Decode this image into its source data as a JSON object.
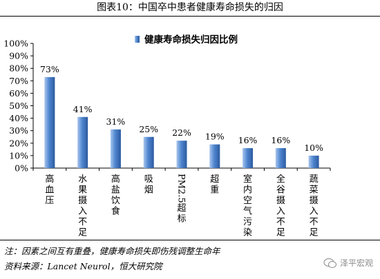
{
  "title": "图表10：中国卒中患者健康寿命损失的归因",
  "note": "注：因素之间互有重叠，健康寿命损失即伤残调整生命年",
  "source": "资料来源：Lancet Neurol，恒大研究院",
  "watermark": "泽平宏观",
  "colors": {
    "bar_light": "#a9c6ee",
    "bar_mid": "#4f86cf",
    "bar_dark": "#2c5aa0"
  },
  "chart_data": {
    "type": "bar",
    "title": "",
    "xlabel": "",
    "ylabel": "",
    "ylim": [
      0,
      100
    ],
    "yticks": [
      0,
      10,
      20,
      30,
      40,
      50,
      60,
      70,
      80,
      90,
      100
    ],
    "ytick_labels": [
      "0%",
      "10%",
      "20%",
      "30%",
      "40%",
      "50%",
      "60%",
      "70%",
      "80%",
      "90%",
      "100%"
    ],
    "legend": {
      "position": "top-center",
      "label": "健康寿命损失归因比例"
    },
    "grid": false,
    "categories": [
      "高血压",
      "水果摄入不足",
      "高盐饮食",
      "吸烟",
      "PM2.5超标",
      "超重",
      "室内空气污染",
      "全谷摄入不足",
      "蔬菜摄入不足"
    ],
    "values": [
      73,
      41,
      31,
      25,
      22,
      19,
      16,
      16,
      10
    ],
    "data_labels": [
      "73%",
      "41%",
      "31%",
      "25%",
      "22%",
      "19%",
      "16%",
      "16%",
      "10%"
    ]
  }
}
